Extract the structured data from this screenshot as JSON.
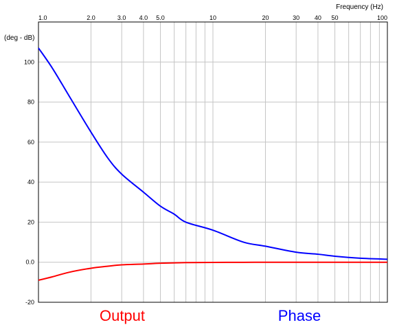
{
  "chart_data": {
    "type": "line",
    "xlabel": "Frequency  (Hz)",
    "ylabel": "(deg - dB)",
    "xscale": "log",
    "xlim": [
      1,
      100
    ],
    "ylim": [
      -20,
      120
    ],
    "grid": true,
    "x_tick_labels": [
      "1.0",
      "2.0",
      "3.0",
      "4.0",
      "5.0",
      "10",
      "20",
      "30",
      "40",
      "50",
      "100"
    ],
    "y_tick_labels": [
      "-20",
      "0.0",
      "20",
      "40",
      "60",
      "80",
      "100"
    ],
    "legend_placement": "bottom",
    "series": [
      {
        "name": "Output",
        "color": "#ff0000",
        "x": [
          1,
          1.2,
          1.5,
          2,
          2.5,
          3,
          4,
          5,
          7,
          10,
          15,
          20,
          30,
          50,
          100
        ],
        "values": [
          -9,
          -7.3,
          -5,
          -3,
          -2,
          -1.3,
          -0.9,
          -0.5,
          -0.2,
          -0.1,
          -0.05,
          0,
          0,
          0,
          0
        ]
      },
      {
        "name": "Phase",
        "color": "#0000ff",
        "x": [
          1,
          1.2,
          1.5,
          2,
          2.5,
          3,
          4,
          5,
          6,
          7,
          10,
          15,
          20,
          30,
          40,
          50,
          70,
          100
        ],
        "values": [
          107,
          97,
          83,
          65,
          52,
          44,
          35,
          28,
          24,
          20,
          16,
          10,
          8,
          5,
          4,
          3,
          2,
          1.5
        ]
      }
    ]
  }
}
